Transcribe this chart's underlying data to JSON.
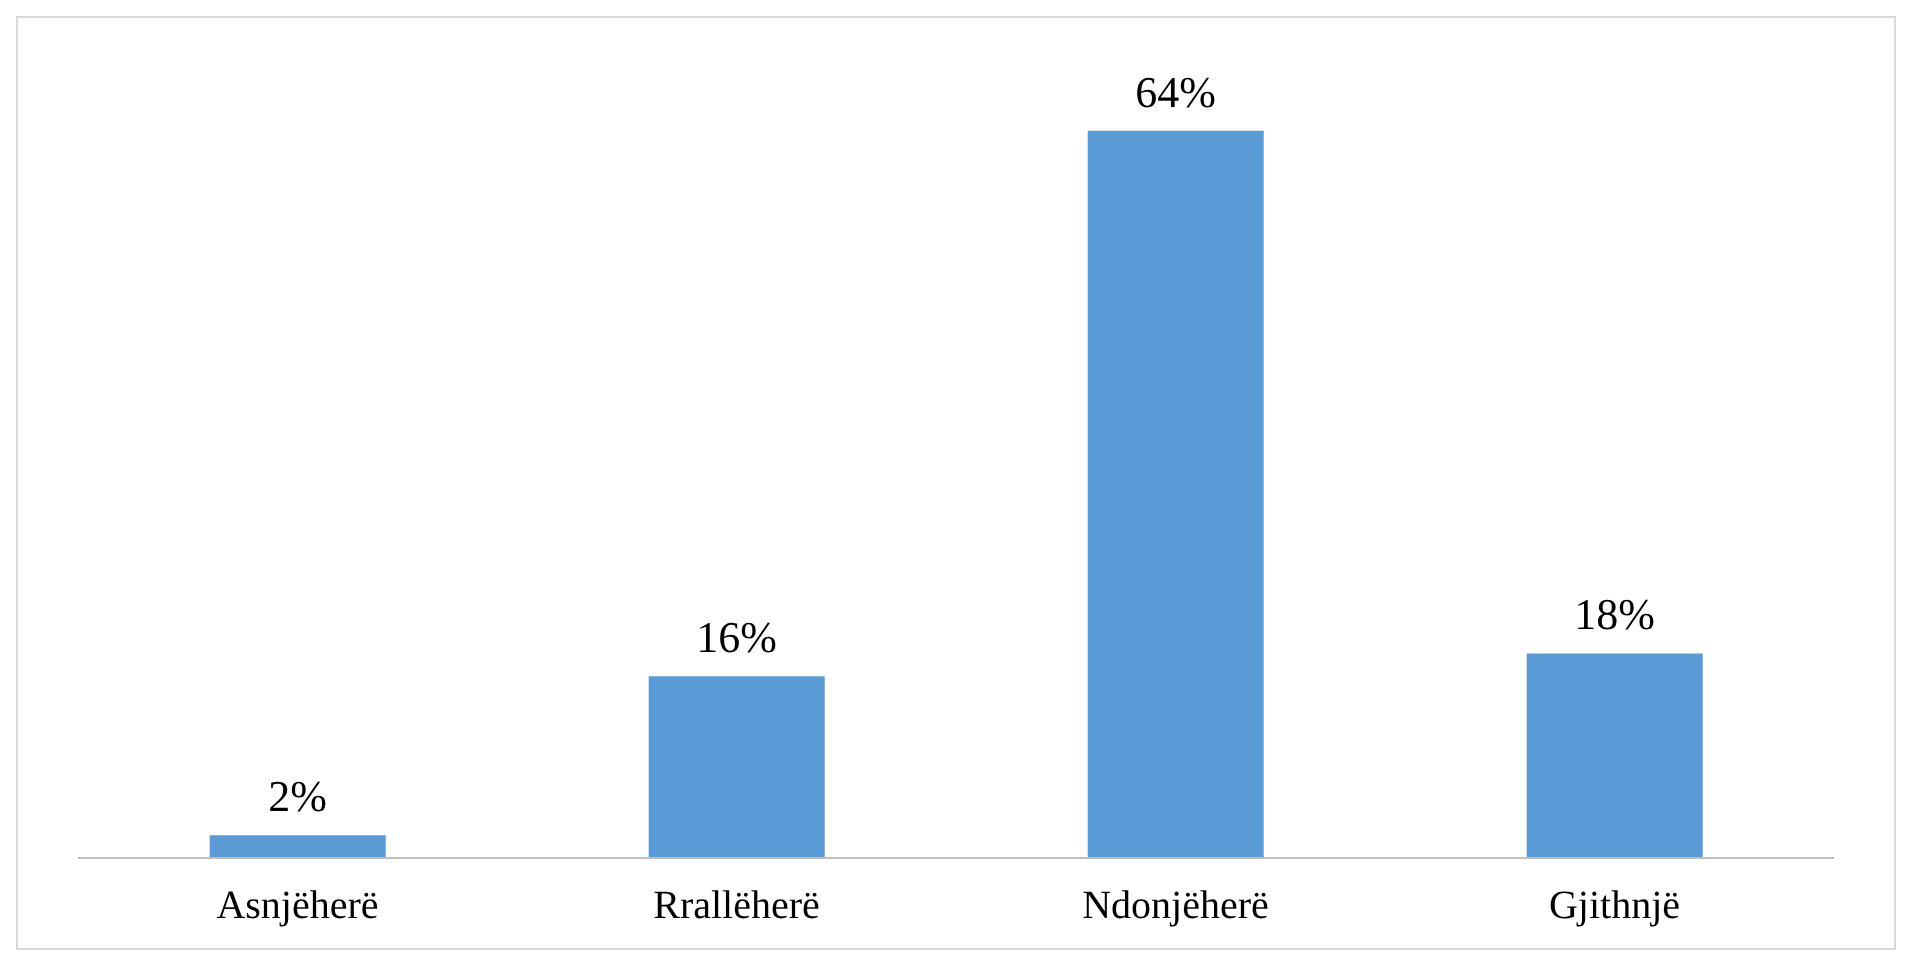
{
  "chart_data": {
    "type": "bar",
    "categories": [
      "Asnjëherë",
      "Rrallëherë",
      "Ndonjëherë",
      "Gjithnjë"
    ],
    "values": [
      2,
      16,
      64,
      18
    ],
    "value_labels": [
      "2%",
      "16%",
      "64%",
      "18%"
    ],
    "color": "#5b9bd5",
    "grid": false,
    "legend": false
  }
}
